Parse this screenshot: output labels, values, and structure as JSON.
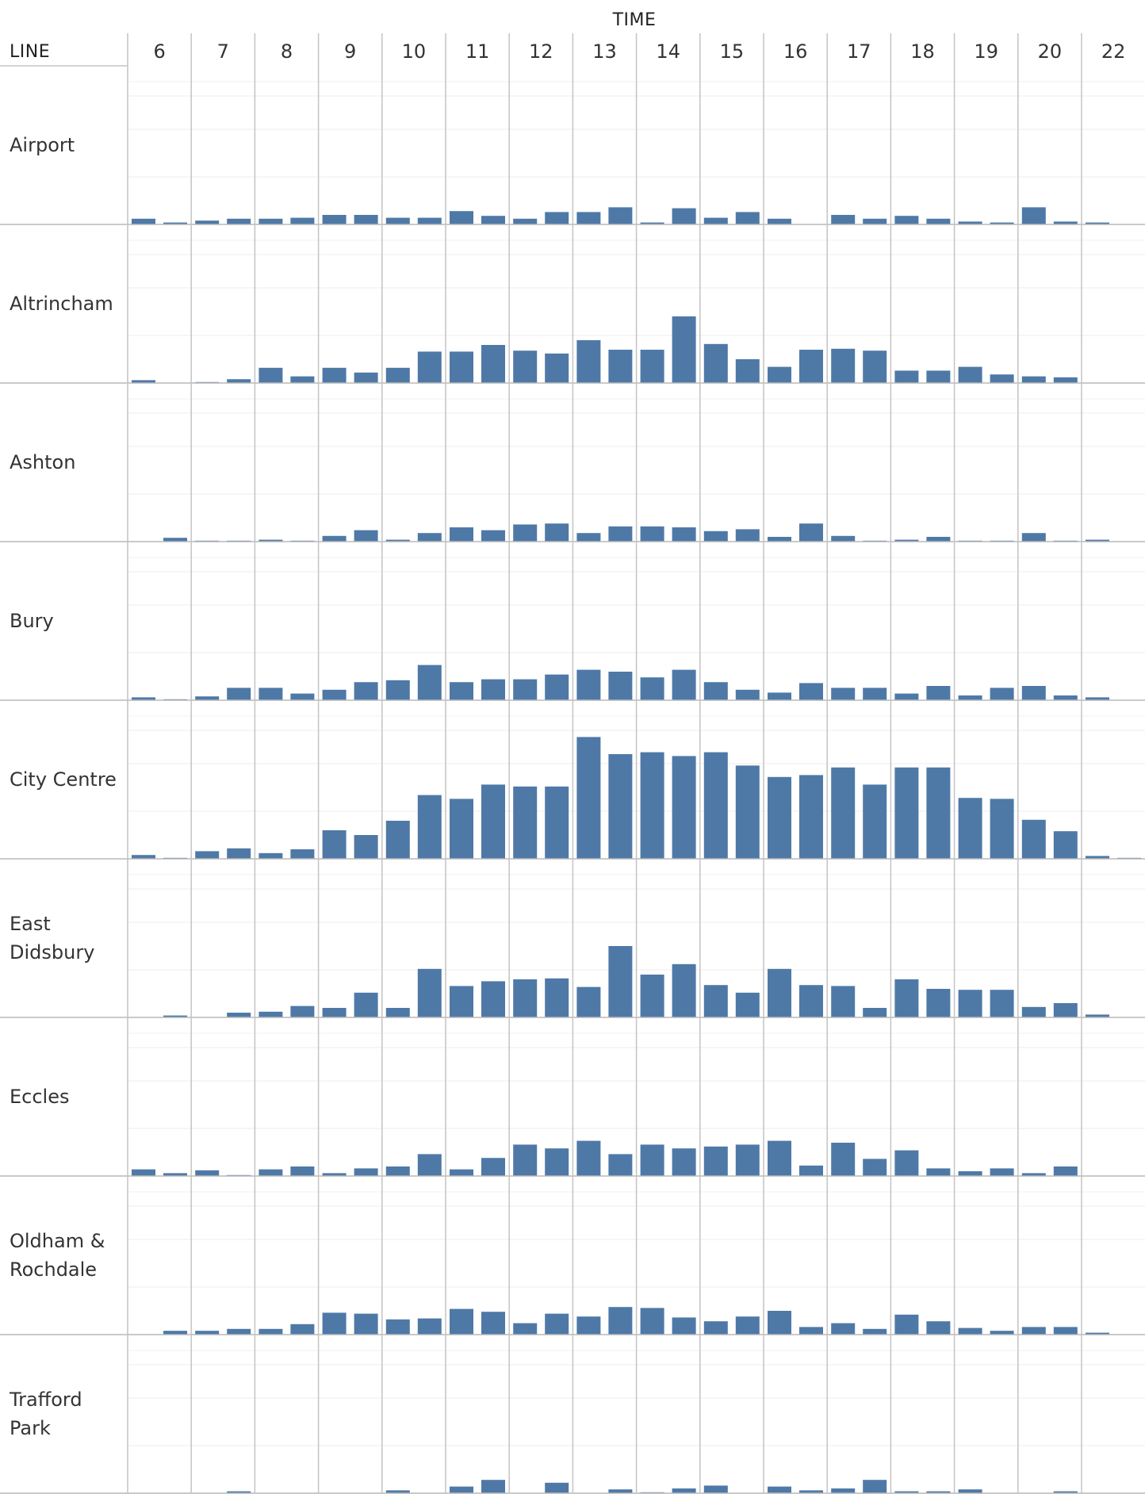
{
  "chart_data": {
    "type": "bar",
    "column_header": "TIME",
    "row_header": "LINE",
    "columns": [
      "6",
      "7",
      "8",
      "9",
      "10",
      "11",
      "12",
      "13",
      "14",
      "15",
      "16",
      "17",
      "18",
      "19",
      "20",
      "22"
    ],
    "bars_per_column": 2,
    "ylim": [
      0,
      150
    ],
    "color": "#4e79a7",
    "grid": true,
    "rows": [
      {
        "name": "Airport",
        "label_lines": [
          "Airport"
        ],
        "values": [
          6,
          2,
          4,
          6,
          6,
          7,
          10,
          10,
          7,
          7,
          14,
          9,
          6,
          13,
          13,
          18,
          2,
          17,
          7,
          13,
          6,
          0,
          10,
          6,
          9,
          6,
          3,
          2,
          18,
          3,
          2,
          0
        ]
      },
      {
        "name": "Altrincham",
        "label_lines": [
          "Altrincham"
        ],
        "values": [
          3,
          0,
          1,
          4,
          16,
          7,
          16,
          11,
          16,
          33,
          33,
          40,
          34,
          31,
          45,
          35,
          35,
          70,
          41,
          25,
          17,
          35,
          36,
          34,
          13,
          13,
          17,
          9,
          7,
          6,
          0,
          0
        ]
      },
      {
        "name": "Ashton",
        "label_lines": [
          "Ashton"
        ],
        "values": [
          0,
          4,
          1,
          1,
          2,
          1,
          6,
          12,
          2,
          9,
          15,
          12,
          18,
          19,
          9,
          16,
          16,
          15,
          11,
          13,
          5,
          19,
          6,
          1,
          2,
          5,
          1,
          1,
          9,
          1,
          2,
          0
        ]
      },
      {
        "name": "Bury",
        "label_lines": [
          "Bury"
        ],
        "values": [
          3,
          1,
          4,
          13,
          13,
          7,
          11,
          19,
          21,
          37,
          19,
          22,
          22,
          27,
          32,
          30,
          24,
          32,
          19,
          11,
          8,
          18,
          13,
          13,
          7,
          15,
          5,
          13,
          15,
          5,
          3,
          0
        ]
      },
      {
        "name": "City Centre",
        "label_lines": [
          "City Centre"
        ],
        "values": [
          4,
          1,
          8,
          11,
          6,
          10,
          30,
          25,
          40,
          67,
          63,
          78,
          76,
          76,
          128,
          110,
          112,
          108,
          112,
          98,
          86,
          88,
          96,
          78,
          96,
          96,
          64,
          63,
          41,
          29,
          3,
          1
        ]
      },
      {
        "name": "East Didsbury",
        "label_lines": [
          "East",
          "Didsbury"
        ],
        "values": [
          0,
          2,
          0,
          5,
          6,
          12,
          10,
          26,
          10,
          51,
          33,
          38,
          40,
          41,
          32,
          75,
          45,
          56,
          34,
          26,
          51,
          34,
          33,
          10,
          40,
          30,
          29,
          29,
          11,
          15,
          3,
          0
        ]
      },
      {
        "name": "Eccles",
        "label_lines": [
          "Eccles"
        ],
        "values": [
          7,
          3,
          6,
          1,
          7,
          10,
          3,
          8,
          10,
          23,
          7,
          19,
          33,
          29,
          37,
          23,
          33,
          29,
          31,
          33,
          37,
          11,
          35,
          18,
          27,
          8,
          5,
          8,
          3,
          10,
          0,
          0
        ]
      },
      {
        "name": "Oldham & Rochdale",
        "label_lines": [
          "Oldham &",
          "Rochdale"
        ],
        "values": [
          0,
          4,
          4,
          6,
          6,
          11,
          23,
          22,
          16,
          17,
          27,
          24,
          12,
          22,
          19,
          29,
          28,
          18,
          14,
          19,
          25,
          8,
          12,
          6,
          21,
          14,
          7,
          4,
          8,
          8,
          2,
          0
        ]
      },
      {
        "name": "Trafford Park",
        "label_lines": [
          "Trafford",
          "Park"
        ],
        "values": [
          0,
          0,
          0,
          2,
          0,
          0,
          0,
          0,
          3,
          0,
          7,
          14,
          0,
          11,
          0,
          4,
          1,
          5,
          8,
          0,
          7,
          3,
          5,
          14,
          2,
          2,
          4,
          0,
          0,
          2,
          0,
          0
        ]
      }
    ]
  }
}
